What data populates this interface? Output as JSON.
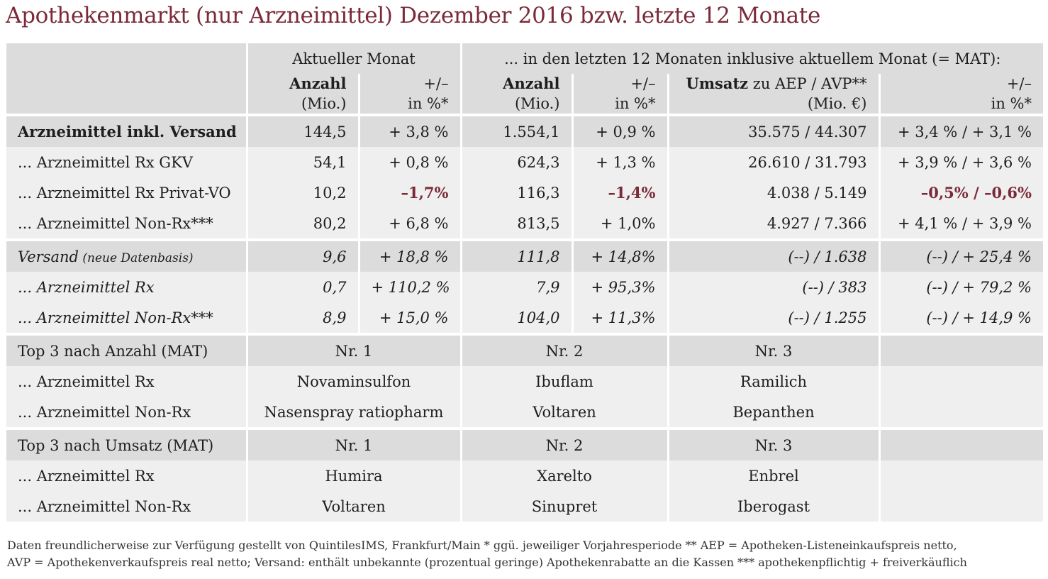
{
  "title": "Apothekenmarkt (nur Arzneimittel) Dezember 2016 bzw. letzte 12 Monate",
  "header": {
    "group_current": "Aktueller Monat",
    "group_mat": "... in den letzten 12 Monaten inklusive aktuellem Monat (= MAT):",
    "col_anzahl_bold": "Anzahl",
    "col_anzahl_unit": "(Mio.)",
    "col_pm_top": "+/–",
    "col_pm_unit": "in %*",
    "col_umsatz_bold": "Umsatz",
    "col_umsatz_rest": " zu AEP / AVP**",
    "col_umsatz_unit": "(Mio. €)"
  },
  "rows_main": [
    {
      "label": "Arzneimittel inkl. Versand",
      "a1": "144,5",
      "p1": "+ 3,8 %",
      "a2": "1.554,1",
      "p2": "+ 0,9 %",
      "u": "35.575 / 44.307",
      "p3": "+ 3,4 % / + 3,1 %"
    },
    {
      "label": "... Arzneimittel Rx GKV",
      "a1": "54,1",
      "p1": "+ 0,8 %",
      "a2": "624,3",
      "p2": "+ 1,3 %",
      "u": "26.610 / 31.793",
      "p3": "+ 3,9 % / + 3,6 %"
    },
    {
      "label": "... Arzneimittel Rx Privat-VO",
      "a1": "10,2",
      "p1": "–1,7%",
      "a2": "116,3",
      "p2": "–1,4%",
      "u": "4.038 / 5.149",
      "p3": "–0,5% / –0,6%"
    },
    {
      "label": "... Arzneimittel Non-Rx***",
      "a1": "80,2",
      "p1": "+ 6,8 %",
      "a2": "813,5",
      "p2": "+ 1,0%",
      "u": "4.927 / 7.366",
      "p3": "+ 4,1 % / + 3,9 %"
    }
  ],
  "rows_versand": [
    {
      "label": "Versand",
      "label_small": " (neue Datenbasis)",
      "a1": "9,6",
      "p1": "+ 18,8 %",
      "a2": "111,8",
      "p2": "+ 14,8%",
      "u": "(--) / 1.638",
      "p3": "(--) / + 25,4 %"
    },
    {
      "label": "... Arzneimittel Rx",
      "label_small": "",
      "a1": "0,7",
      "p1": "+ 110,2 %",
      "a2": "7,9",
      "p2": "+ 95,3%",
      "u": "(--) / 383",
      "p3": "(--) / + 79,2 %"
    },
    {
      "label": "... Arzneimittel Non-Rx***",
      "label_small": "",
      "a1": "8,9",
      "p1": "+ 15,0 %",
      "a2": "104,0",
      "p2": "+ 11,3%",
      "u": "(--) / 1.255",
      "p3": "(--) / + 14,9 %"
    }
  ],
  "top_anzahl": {
    "heading": "Top 3 nach Anzahl (MAT)",
    "nr1": "Nr. 1",
    "nr2": "Nr. 2",
    "nr3": "Nr. 3",
    "rows": [
      {
        "label": "... Arzneimittel Rx",
        "n1": "Novaminsulfon",
        "n2": "Ibuflam",
        "n3": "Ramilich"
      },
      {
        "label": "... Arzneimittel Non-Rx",
        "n1": "Nasenspray ratiopharm",
        "n2": "Voltaren",
        "n3": "Bepanthen"
      }
    ]
  },
  "top_umsatz": {
    "heading": "Top 3 nach Umsatz (MAT)",
    "nr1": "Nr. 1",
    "nr2": "Nr. 2",
    "nr3": "Nr. 3",
    "rows": [
      {
        "label": "... Arzneimittel Rx",
        "n1": "Humira",
        "n2": "Xarelto",
        "n3": "Enbrel"
      },
      {
        "label": "... Arzneimittel Non-Rx",
        "n1": "Voltaren",
        "n2": "Sinupret",
        "n3": "Iberogast"
      }
    ]
  },
  "footer": {
    "line1": "Daten freundlicherweise zur Verfügung gestellt von QuintilesIMS, Frankfurt/Main   * ggü. jeweiliger Vorjahresperiode   ** AEP = Apotheken-Listeneinkaufspreis netto,",
    "line2": "AVP = Apothekenverkaufspreis real netto; Versand: enthält unbekannte (prozentual geringe) Apothekenrabatte an die Kassen   *** apothekenpflichtig + freiverkäuflich"
  },
  "colors": {
    "title": "#7b2a3a",
    "negative": "#7b2a3a",
    "band_dark": "#dcdcdc",
    "band_light": "#efefef"
  }
}
